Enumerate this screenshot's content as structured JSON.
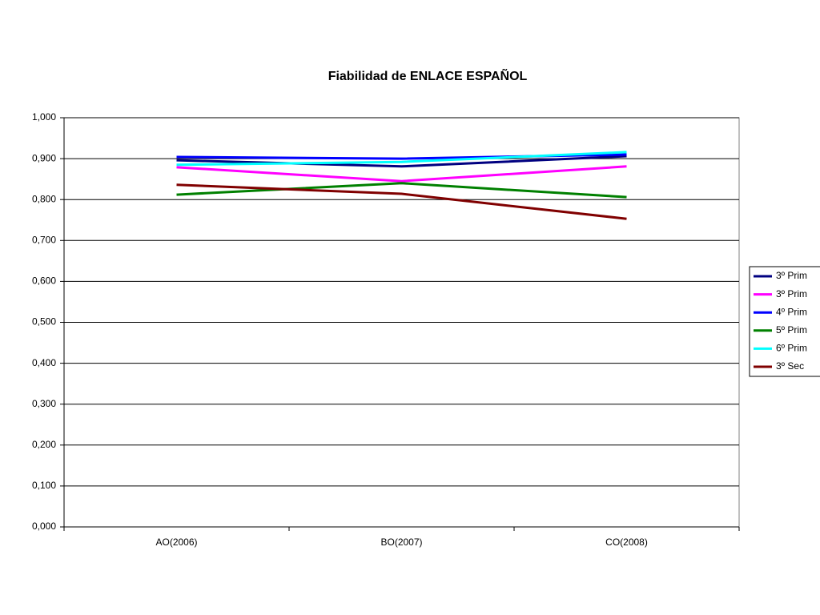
{
  "chart_data": {
    "type": "line",
    "title": "Fiabilidad de ENLACE ESPAÑOL",
    "categories": [
      "AO(2006)",
      "BO(2007)",
      "CO(2008)"
    ],
    "series": [
      {
        "name": "3º Prim",
        "color": "#000080",
        "values": [
          0.896,
          0.881,
          0.906
        ]
      },
      {
        "name": "3º Prim",
        "color": "#ff00ff",
        "values": [
          0.879,
          0.845,
          0.881
        ]
      },
      {
        "name": "4º Prim",
        "color": "#0000ff",
        "values": [
          0.904,
          0.9,
          0.91
        ]
      },
      {
        "name": "5º Prim",
        "color": "#008000",
        "values": [
          0.812,
          0.84,
          0.806
        ]
      },
      {
        "name": "6º Prim",
        "color": "#00ffff",
        "values": [
          0.885,
          0.892,
          0.916
        ]
      },
      {
        "name": "3º Sec",
        "color": "#800000",
        "values": [
          0.836,
          0.814,
          0.753
        ]
      }
    ],
    "ylim": [
      0,
      1
    ],
    "yticks": [
      {
        "value": 0,
        "label": "0,000"
      },
      {
        "value": 0.1,
        "label": "0,100"
      },
      {
        "value": 0.2,
        "label": "0,200"
      },
      {
        "value": 0.3,
        "label": "0,300"
      },
      {
        "value": 0.4,
        "label": "0,400"
      },
      {
        "value": 0.5,
        "label": "0,500"
      },
      {
        "value": 0.6,
        "label": "0,600"
      },
      {
        "value": 0.7,
        "label": "0,700"
      },
      {
        "value": 0.8,
        "label": "0,800"
      },
      {
        "value": 0.9,
        "label": "0,900"
      },
      {
        "value": 1,
        "label": "1,000"
      }
    ],
    "grid": true,
    "legend": "right"
  }
}
